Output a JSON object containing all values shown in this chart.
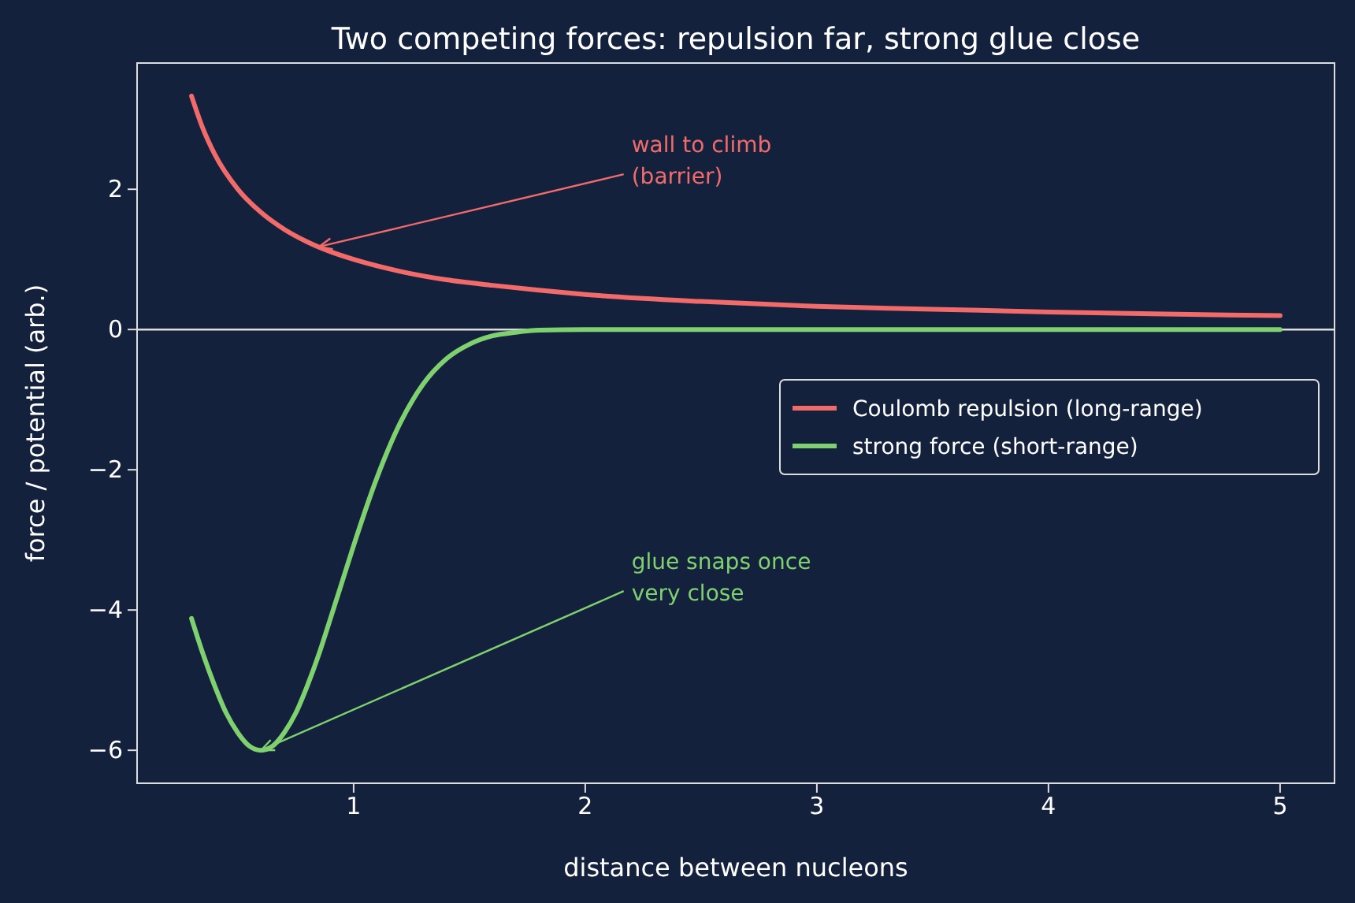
{
  "chart_data": {
    "type": "line",
    "title": "Two competing forces: repulsion far, strong glue close",
    "xlabel": "distance between nucleons",
    "ylabel": "force / potential (arb.)",
    "xlim": [
      0.065,
      5.235
    ],
    "ylim": [
      -6.47,
      3.8
    ],
    "xticks": [
      1,
      2,
      3,
      4,
      5
    ],
    "yticks": [
      {
        "value": -6,
        "label": "−6"
      },
      {
        "value": -4,
        "label": "−4"
      },
      {
        "value": -2,
        "label": "−2"
      },
      0,
      2
    ],
    "grid": false,
    "legend": "right",
    "line_style": "solid",
    "marker": "none",
    "ref_lines": [
      {
        "axis": "y",
        "value": 0,
        "color": "#dddddd"
      }
    ],
    "annotations": [
      {
        "text": "wall to climb\n(barrier)",
        "x": 0.85,
        "y": 1.18
      },
      {
        "text": "glue snaps once\nvery close",
        "x": 0.6,
        "y": -6
      }
    ],
    "series": [
      {
        "name": "Coulomb repulsion (long-range)",
        "color": "#f26b6b",
        "x": [
          0.3,
          0.35,
          0.4,
          0.5,
          0.6,
          0.7,
          0.8,
          0.9,
          1,
          1.2,
          1.4,
          1.6,
          1.8,
          2,
          2.5,
          3,
          3.5,
          4,
          4.5,
          5
        ],
        "values": [
          3.33,
          2.86,
          2.5,
          2,
          1.67,
          1.43,
          1.25,
          1.11,
          1,
          0.83,
          0.71,
          0.63,
          0.56,
          0.5,
          0.4,
          0.33,
          0.29,
          0.25,
          0.22,
          0.2
        ]
      },
      {
        "name": "strong force (short-range)",
        "color": "#7fd06f",
        "x": [
          0.3,
          0.35,
          0.4,
          0.45,
          0.5,
          0.55,
          0.6,
          0.65,
          0.7,
          0.75,
          0.8,
          0.85,
          0.9,
          0.95,
          1,
          1.1,
          1.2,
          1.3,
          1.4,
          1.5,
          1.6,
          1.7,
          1.8,
          2,
          3,
          4,
          5
        ],
        "values": [
          -4.12,
          -4.63,
          -5.08,
          -5.47,
          -5.75,
          -5.94,
          -6,
          -5.94,
          -5.75,
          -5.47,
          -5.08,
          -4.63,
          -4.12,
          -3.6,
          -3.08,
          -2.12,
          -1.34,
          -0.78,
          -0.42,
          -0.21,
          -0.09,
          -0.04,
          -0.01,
          0,
          0,
          0,
          0
        ]
      }
    ]
  }
}
